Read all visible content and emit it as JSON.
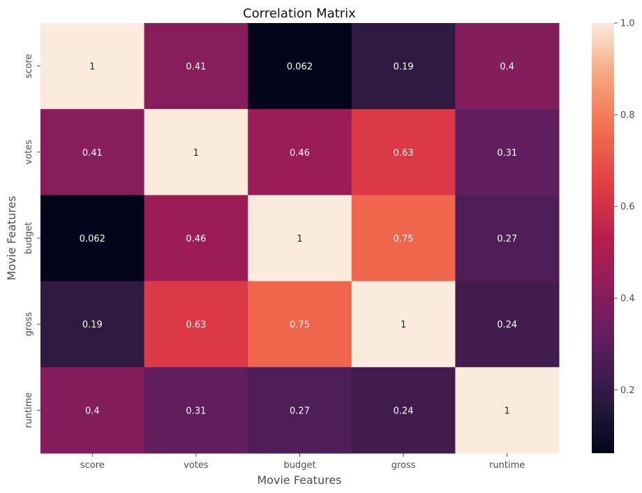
{
  "chart_data": {
    "type": "heatmap",
    "title": "Correlation Matrix",
    "xlabel": "Movie Features",
    "ylabel": "Movie Features",
    "x_categories": [
      "score",
      "votes",
      "budget",
      "gross",
      "runtime"
    ],
    "y_categories": [
      "score",
      "votes",
      "budget",
      "gross",
      "runtime"
    ],
    "values": [
      [
        1,
        0.41,
        0.062,
        0.19,
        0.4
      ],
      [
        0.41,
        1,
        0.46,
        0.63,
        0.31
      ],
      [
        0.062,
        0.46,
        1,
        0.75,
        0.27
      ],
      [
        0.19,
        0.63,
        0.75,
        1,
        0.24
      ],
      [
        0.4,
        0.31,
        0.27,
        0.24,
        1
      ]
    ],
    "annotations": [
      [
        "1",
        "0.41",
        "0.062",
        "0.19",
        "0.4"
      ],
      [
        "0.41",
        "1",
        "0.46",
        "0.63",
        "0.31"
      ],
      [
        "0.062",
        "0.46",
        "1",
        "0.75",
        "0.27"
      ],
      [
        "0.19",
        "0.63",
        "0.75",
        "1",
        "0.24"
      ],
      [
        "0.4",
        "0.31",
        "0.27",
        "0.24",
        "1"
      ]
    ],
    "colorbar": {
      "range": [
        0.062,
        1
      ],
      "ticks": [
        "0.2",
        "0.4",
        "0.6",
        "0.8",
        "1.0"
      ],
      "colormap": "rocket"
    },
    "grid": false,
    "legend": "right colorbar"
  }
}
